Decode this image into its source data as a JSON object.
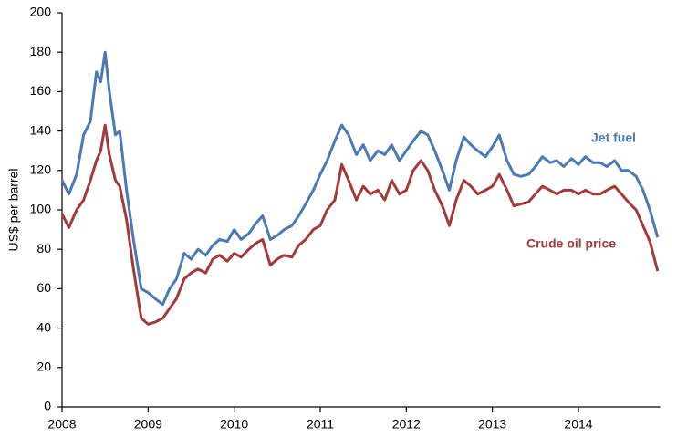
{
  "chart_data": {
    "type": "line",
    "y_label": "US$ per barrel",
    "x": [
      2008.0,
      2008.08,
      2008.17,
      2008.25,
      2008.33,
      2008.4,
      2008.45,
      2008.5,
      2008.55,
      2008.62,
      2008.67,
      2008.75,
      2008.83,
      2008.92,
      2009.0,
      2009.08,
      2009.17,
      2009.25,
      2009.33,
      2009.42,
      2009.5,
      2009.58,
      2009.67,
      2009.75,
      2009.83,
      2009.92,
      2010.0,
      2010.08,
      2010.17,
      2010.25,
      2010.33,
      2010.42,
      2010.5,
      2010.58,
      2010.67,
      2010.75,
      2010.83,
      2010.92,
      2011.0,
      2011.08,
      2011.17,
      2011.25,
      2011.33,
      2011.42,
      2011.5,
      2011.58,
      2011.67,
      2011.75,
      2011.83,
      2011.92,
      2012.0,
      2012.08,
      2012.17,
      2012.25,
      2012.33,
      2012.42,
      2012.5,
      2012.58,
      2012.67,
      2012.75,
      2012.83,
      2012.92,
      2013.0,
      2013.08,
      2013.17,
      2013.25,
      2013.33,
      2013.42,
      2013.5,
      2013.58,
      2013.67,
      2013.75,
      2013.83,
      2013.92,
      2014.0,
      2014.08,
      2014.17,
      2014.25,
      2014.33,
      2014.42,
      2014.5,
      2014.58,
      2014.67,
      2014.75,
      2014.83,
      2014.92
    ],
    "series": [
      {
        "name": "Jet fuel",
        "color": "#4a7ab5",
        "values": [
          115,
          108,
          118,
          138,
          145,
          170,
          165,
          180,
          160,
          138,
          140,
          110,
          85,
          60,
          58,
          55,
          52,
          60,
          65,
          78,
          75,
          80,
          77,
          82,
          85,
          84,
          90,
          85,
          88,
          93,
          97,
          85,
          87,
          90,
          92,
          97,
          103,
          110,
          118,
          125,
          135,
          143,
          138,
          128,
          133,
          125,
          130,
          128,
          133,
          125,
          130,
          135,
          140,
          138,
          130,
          120,
          110,
          125,
          137,
          133,
          130,
          127,
          132,
          138,
          125,
          118,
          117,
          118,
          122,
          127,
          124,
          125,
          122,
          126,
          123,
          127,
          124,
          124,
          122,
          125,
          120,
          120,
          117,
          110,
          100,
          86
        ]
      },
      {
        "name": "Crude oil price",
        "color": "#a33a3a",
        "values": [
          98,
          91,
          100,
          105,
          115,
          125,
          130,
          143,
          128,
          115,
          112,
          95,
          70,
          45,
          42,
          43,
          45,
          50,
          55,
          65,
          68,
          70,
          68,
          75,
          77,
          74,
          78,
          76,
          80,
          83,
          85,
          72,
          75,
          77,
          76,
          82,
          85,
          90,
          92,
          100,
          105,
          123,
          115,
          105,
          112,
          108,
          110,
          105,
          115,
          108,
          110,
          120,
          125,
          120,
          110,
          102,
          92,
          105,
          115,
          112,
          108,
          110,
          112,
          118,
          110,
          102,
          103,
          104,
          108,
          112,
          110,
          108,
          110,
          110,
          108,
          110,
          108,
          108,
          110,
          112,
          108,
          104,
          100,
          92,
          84,
          69
        ]
      }
    ],
    "xlim": [
      2008,
      2014.95
    ],
    "xticks": [
      2008,
      2009,
      2010,
      2011,
      2012,
      2013,
      2014
    ],
    "ylim": [
      0,
      200
    ],
    "yticks": [
      0,
      20,
      40,
      60,
      80,
      100,
      120,
      140,
      160,
      180,
      200
    ],
    "grid": false,
    "legend": "inline"
  }
}
